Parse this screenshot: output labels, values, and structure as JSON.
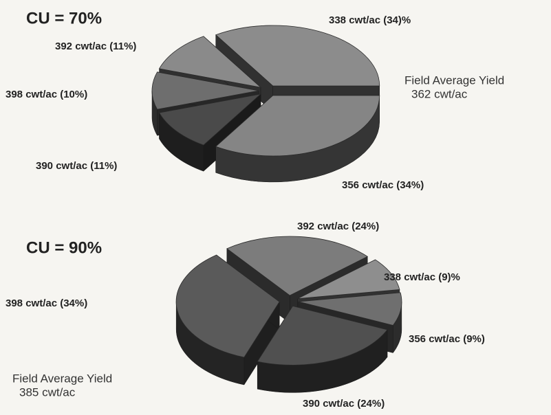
{
  "chart_data": [
    {
      "type": "pie3d",
      "title": "CU = 70%",
      "annotation": [
        "Field Average Yield",
        "362 cwt/ac"
      ],
      "categories": [
        "338 cwt/ac (34)%",
        "356 cwt/ac (34%)",
        "390 cwt/ac (11%)",
        "398 cwt/ac (10%)",
        "392 cwt/ac (11%)"
      ],
      "values": [
        34,
        34,
        11,
        10,
        11
      ],
      "colors": [
        "#8c8c8c",
        "#858585",
        "#4a4a4a",
        "#6e6e6e",
        "#8a8a8a"
      ]
    },
    {
      "type": "pie3d",
      "title": "CU = 90%",
      "annotation": [
        "Field Average Yield",
        "385 cwt/ac"
      ],
      "categories": [
        "392 cwt/ac (24%)",
        "338 cwt/ac (9)%",
        "356 cwt/ac (9%)",
        "390 cwt/ac (24%)",
        "398 cwt/ac (34%)"
      ],
      "values": [
        24,
        9,
        9,
        24,
        34
      ],
      "colors": [
        "#7c7c7c",
        "#8e8e8e",
        "#6f6f6f",
        "#505050",
        "#5a5a5a"
      ]
    }
  ]
}
